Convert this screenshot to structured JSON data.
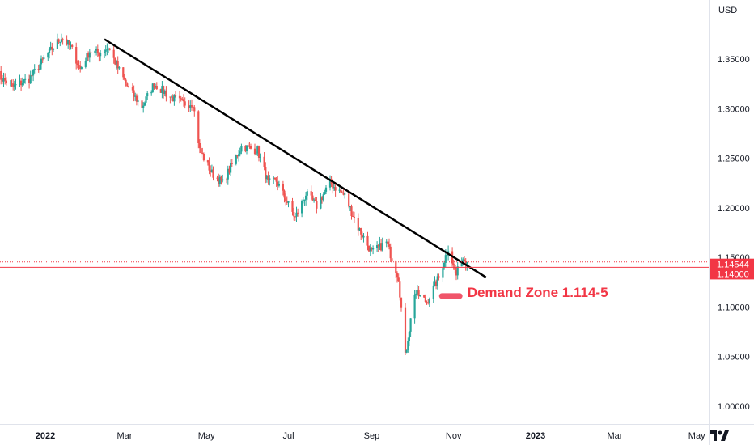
{
  "chart_data": {
    "type": "candlestick",
    "instrument_currency": "USD",
    "y_axis": {
      "unit": "USD",
      "ylim": [
        0.975,
        1.395
      ],
      "ticks": [
        1.0,
        1.05,
        1.1,
        1.15,
        1.2,
        1.25,
        1.3,
        1.35
      ],
      "tick_labels": [
        "1.00000",
        "1.05000",
        "1.10000",
        "1.15000",
        "1.20000",
        "1.25000",
        "1.30000",
        "1.35000"
      ],
      "position": "right"
    },
    "x_axis": {
      "start": "2021-11-25",
      "end": "2023-05-20",
      "tick_labels": [
        {
          "label": "2022",
          "date": "2022-01-01",
          "bold": true
        },
        {
          "label": "Mar",
          "date": "2022-03-01",
          "bold": false
        },
        {
          "label": "May",
          "date": "2022-05-01",
          "bold": false
        },
        {
          "label": "Jul",
          "date": "2022-07-01",
          "bold": false
        },
        {
          "label": "Sep",
          "date": "2022-09-01",
          "bold": false
        },
        {
          "label": "Nov",
          "date": "2022-11-01",
          "bold": false
        },
        {
          "label": "2023",
          "date": "2023-01-01",
          "bold": true
        },
        {
          "label": "Mar",
          "date": "2023-03-01",
          "bold": false
        },
        {
          "label": "May",
          "date": "2023-05-01",
          "bold": false
        }
      ]
    },
    "grid": false,
    "colors": {
      "up": "#26a69a",
      "down": "#ef5350",
      "trendline": "#000000",
      "price_line": "#f23645",
      "zone": "#f0556a",
      "annotation_text": "#f23645"
    },
    "price_lines": [
      {
        "label": "1.14544",
        "value": 1.14544,
        "style": "dotted"
      },
      {
        "label": "1.14000",
        "value": 1.14,
        "style": "solid"
      }
    ],
    "trendline": {
      "from": {
        "date": "2022-02-14",
        "value": 1.37
      },
      "to": {
        "date": "2022-11-25",
        "value": 1.13
      }
    },
    "annotation": {
      "text": "Demand Zone 1.114-5",
      "date": "2022-11-04",
      "value": 1.111
    },
    "price_path": [
      [
        "2021-11-25",
        1.335
      ],
      [
        "2021-12-08",
        1.322
      ],
      [
        "2021-12-20",
        1.33
      ],
      [
        "2022-01-01",
        1.352
      ],
      [
        "2022-01-13",
        1.372
      ],
      [
        "2022-01-20",
        1.362
      ],
      [
        "2022-01-27",
        1.34
      ],
      [
        "2022-02-03",
        1.358
      ],
      [
        "2022-02-10",
        1.356
      ],
      [
        "2022-02-17",
        1.362
      ],
      [
        "2022-02-24",
        1.341
      ],
      [
        "2022-03-04",
        1.32
      ],
      [
        "2022-03-14",
        1.302
      ],
      [
        "2022-03-23",
        1.325
      ],
      [
        "2022-04-04",
        1.312
      ],
      [
        "2022-04-14",
        1.305
      ],
      [
        "2022-04-21",
        1.306
      ],
      [
        "2022-04-26",
        1.258
      ],
      [
        "2022-05-05",
        1.235
      ],
      [
        "2022-05-13",
        1.225
      ],
      [
        "2022-05-27",
        1.262
      ],
      [
        "2022-06-08",
        1.258
      ],
      [
        "2022-06-16",
        1.225
      ],
      [
        "2022-06-22",
        1.227
      ],
      [
        "2022-07-06",
        1.19
      ],
      [
        "2022-07-14",
        1.214
      ],
      [
        "2022-07-22",
        1.202
      ],
      [
        "2022-08-01",
        1.225
      ],
      [
        "2022-08-12",
        1.212
      ],
      [
        "2022-08-22",
        1.18
      ],
      [
        "2022-09-01",
        1.155
      ],
      [
        "2022-09-12",
        1.165
      ],
      [
        "2022-09-21",
        1.13
      ],
      [
        "2022-09-26",
        1.05
      ],
      [
        "2022-10-03",
        1.115
      ],
      [
        "2022-10-12",
        1.105
      ],
      [
        "2022-10-21",
        1.13
      ],
      [
        "2022-10-28",
        1.16
      ],
      [
        "2022-11-03",
        1.132
      ],
      [
        "2022-11-07",
        1.15
      ],
      [
        "2022-11-11",
        1.1454
      ]
    ]
  }
}
